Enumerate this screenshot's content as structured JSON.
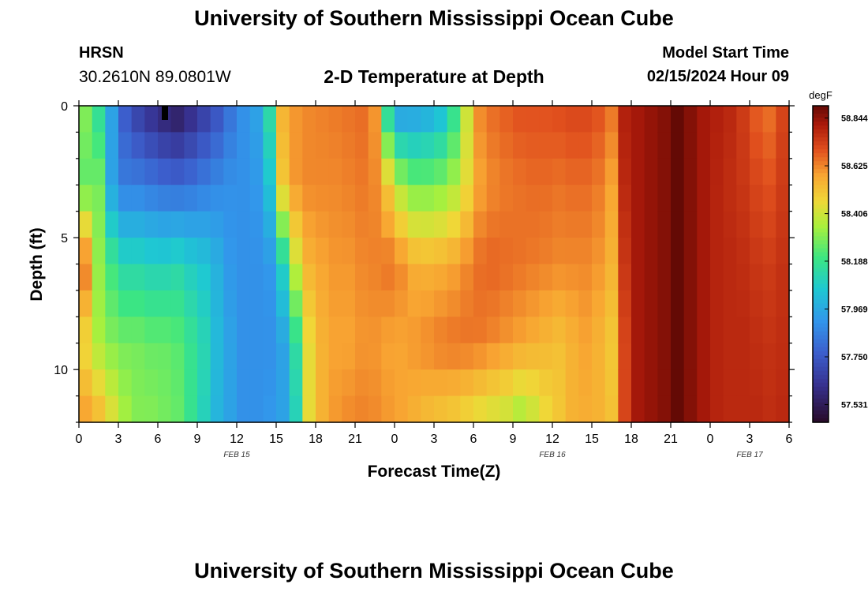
{
  "header": {
    "title": "University of Southern Mississippi Ocean Cube",
    "station": "HRSN",
    "coords": "30.2610N  89.0801W",
    "subtitle": "2-D Temperature at Depth",
    "model_start_label": "Model Start Time",
    "model_start_value": "02/15/2024 Hour 09"
  },
  "footer": {
    "title": "University of Southern Mississippi Ocean Cube"
  },
  "chart_data": {
    "type": "heatmap",
    "title": "2-D Temperature at Depth",
    "xlabel": "Forecast Time(Z)",
    "ylabel": "Depth (ft)",
    "xlim": [
      0,
      54
    ],
    "ylim": [
      0,
      12
    ],
    "y_inverted": true,
    "x_ticks": [
      {
        "x": 0,
        "label": "0"
      },
      {
        "x": 3,
        "label": "3"
      },
      {
        "x": 6,
        "label": "6"
      },
      {
        "x": 9,
        "label": "9"
      },
      {
        "x": 12,
        "label": "12"
      },
      {
        "x": 15,
        "label": "15"
      },
      {
        "x": 18,
        "label": "18"
      },
      {
        "x": 21,
        "label": "21"
      },
      {
        "x": 24,
        "label": "0"
      },
      {
        "x": 27,
        "label": "3"
      },
      {
        "x": 30,
        "label": "6"
      },
      {
        "x": 33,
        "label": "9"
      },
      {
        "x": 36,
        "label": "12"
      },
      {
        "x": 39,
        "label": "15"
      },
      {
        "x": 42,
        "label": "18"
      },
      {
        "x": 45,
        "label": "21"
      },
      {
        "x": 48,
        "label": "0"
      },
      {
        "x": 51,
        "label": "3"
      },
      {
        "x": 54,
        "label": "6"
      }
    ],
    "date_labels": [
      {
        "x": 12,
        "label": "FEB 15"
      },
      {
        "x": 36,
        "label": "FEB 16"
      },
      {
        "x": 51,
        "label": "FEB 17"
      }
    ],
    "y_ticks": [
      {
        "y": 0,
        "label": "0"
      },
      {
        "y": 5,
        "label": "5"
      },
      {
        "y": 10,
        "label": "10"
      }
    ],
    "colorbar": {
      "units": "degF",
      "min": 57.45,
      "max": 58.9,
      "labels": [
        "58.844",
        "58.625",
        "58.406",
        "58.188",
        "57.969",
        "57.750",
        "57.531"
      ]
    },
    "x_hours": [
      0,
      1,
      2,
      3,
      4,
      5,
      6,
      7,
      8,
      9,
      10,
      11,
      12,
      13,
      14,
      15,
      16,
      17,
      18,
      19,
      20,
      21,
      22,
      23,
      24,
      25,
      26,
      27,
      28,
      29,
      30,
      31,
      32,
      33,
      34,
      35,
      36,
      37,
      38,
      39,
      40,
      41,
      42,
      43,
      44,
      45,
      46,
      47,
      48,
      49,
      50,
      51,
      52,
      53,
      54
    ],
    "profiles_description": "temperature (degF) at depths 0, 3, 6, 9, 12 ft, per hour",
    "depths": [
      0,
      3,
      6,
      9,
      12
    ],
    "temperature_profiles": [
      [
        58.3,
        58.25,
        58.65,
        58.45,
        58.6
      ],
      [
        58.15,
        58.28,
        58.32,
        58.35,
        58.55
      ],
      [
        57.95,
        57.95,
        58.2,
        58.3,
        58.45
      ],
      [
        57.75,
        57.85,
        58.12,
        58.28,
        58.35
      ],
      [
        57.66,
        57.85,
        58.12,
        58.28,
        58.3
      ],
      [
        57.6,
        57.83,
        58.1,
        58.26,
        58.3
      ],
      [
        57.55,
        57.81,
        58.1,
        58.26,
        58.28
      ],
      [
        57.52,
        57.8,
        58.12,
        58.24,
        58.26
      ],
      [
        57.58,
        57.82,
        58.08,
        58.18,
        58.18
      ],
      [
        57.65,
        57.85,
        58.05,
        58.12,
        58.1
      ],
      [
        57.72,
        57.88,
        57.99,
        58.02,
        58.0
      ],
      [
        57.82,
        57.9,
        57.92,
        57.95,
        57.95
      ],
      [
        57.9,
        57.9,
        57.9,
        57.9,
        57.9
      ],
      [
        57.95,
        57.92,
        57.9,
        57.9,
        57.9
      ],
      [
        58.15,
        58.05,
        57.92,
        57.9,
        57.92
      ],
      [
        58.55,
        58.5,
        58.1,
        57.95,
        57.95
      ],
      [
        58.6,
        58.6,
        58.4,
        58.15,
        58.1
      ],
      [
        58.62,
        58.62,
        58.55,
        58.45,
        58.45
      ],
      [
        58.63,
        58.62,
        58.58,
        58.55,
        58.55
      ],
      [
        58.64,
        58.62,
        58.6,
        58.58,
        58.6
      ],
      [
        58.65,
        58.63,
        58.6,
        58.58,
        58.62
      ],
      [
        58.66,
        58.64,
        58.62,
        58.6,
        58.63
      ],
      [
        58.6,
        58.62,
        58.63,
        58.6,
        58.62
      ],
      [
        58.1,
        58.5,
        58.65,
        58.58,
        58.6
      ],
      [
        57.9,
        58.35,
        58.62,
        58.58,
        58.58
      ],
      [
        57.92,
        58.28,
        58.56,
        58.6,
        58.55
      ],
      [
        57.95,
        58.28,
        58.55,
        58.62,
        58.52
      ],
      [
        58.0,
        58.3,
        58.56,
        58.64,
        58.5
      ],
      [
        58.15,
        58.35,
        58.58,
        58.65,
        58.48
      ],
      [
        58.4,
        58.45,
        58.62,
        58.65,
        58.45
      ],
      [
        58.62,
        58.58,
        58.66,
        58.64,
        58.42
      ],
      [
        58.66,
        58.62,
        58.67,
        58.62,
        58.4
      ],
      [
        58.68,
        58.64,
        58.66,
        58.6,
        58.38
      ],
      [
        58.7,
        58.65,
        58.65,
        58.58,
        58.33
      ],
      [
        58.7,
        58.66,
        58.64,
        58.56,
        58.38
      ],
      [
        58.7,
        58.66,
        58.63,
        58.54,
        58.45
      ],
      [
        58.71,
        58.65,
        58.62,
        58.52,
        58.5
      ],
      [
        58.72,
        58.66,
        58.62,
        58.55,
        58.55
      ],
      [
        58.72,
        58.66,
        58.62,
        58.58,
        58.56
      ],
      [
        58.7,
        58.64,
        58.6,
        58.55,
        58.55
      ],
      [
        58.65,
        58.58,
        58.55,
        58.5,
        58.52
      ],
      [
        58.8,
        58.78,
        58.75,
        58.72,
        58.72
      ],
      [
        58.82,
        58.82,
        58.82,
        58.82,
        58.82
      ],
      [
        58.84,
        58.84,
        58.84,
        58.84,
        58.84
      ],
      [
        58.86,
        58.86,
        58.86,
        58.86,
        58.86
      ],
      [
        58.9,
        58.9,
        58.9,
        58.9,
        58.9
      ],
      [
        58.86,
        58.86,
        58.86,
        58.86,
        58.86
      ],
      [
        58.82,
        58.82,
        58.82,
        58.82,
        58.82
      ],
      [
        58.8,
        58.79,
        58.79,
        58.79,
        58.79
      ],
      [
        58.78,
        58.77,
        58.78,
        58.78,
        58.78
      ],
      [
        58.74,
        58.75,
        58.77,
        58.78,
        58.78
      ],
      [
        58.68,
        58.72,
        58.75,
        58.77,
        58.78
      ],
      [
        58.65,
        58.7,
        58.74,
        58.76,
        58.77
      ],
      [
        58.72,
        58.74,
        58.76,
        58.77,
        58.78
      ],
      [
        58.8,
        58.8,
        58.8,
        58.8,
        58.8
      ]
    ]
  }
}
